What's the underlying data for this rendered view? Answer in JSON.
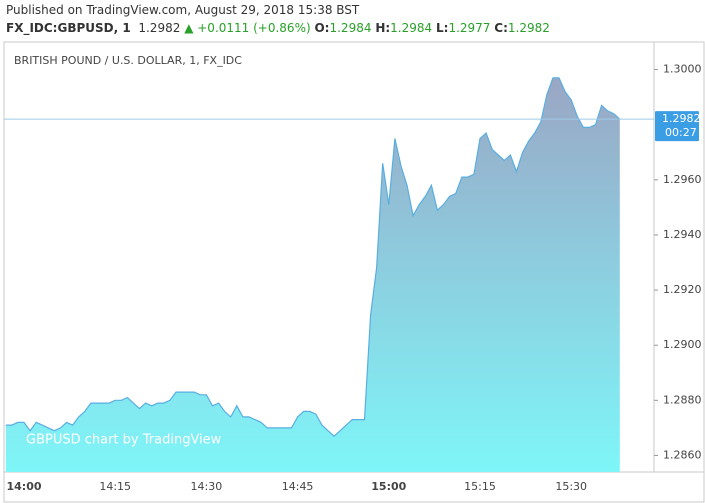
{
  "header": {
    "published": "Published on TradingView.com, August 29, 2018 15:38 BST",
    "symbol": "FX_IDC:GBPUSD, 1",
    "last": "1.2982",
    "change": "+0.0111 (+0.86%)",
    "ohlc": [
      {
        "label": "O:",
        "value": "1.2984"
      },
      {
        "label": "H:",
        "value": "1.2984"
      },
      {
        "label": "L:",
        "value": "1.2977"
      },
      {
        "label": "C:",
        "value": "1.2982"
      }
    ]
  },
  "chart_data": {
    "type": "area",
    "title": "BRITISH POUND / U.S. DOLLAR, 1, FX_IDC",
    "watermark": "GBPUSD chart by TradingView",
    "categories": [
      null,
      null,
      null,
      "14:00",
      null,
      null,
      null,
      null,
      null,
      null,
      null,
      null,
      null,
      null,
      null,
      null,
      null,
      null,
      "14:15",
      null,
      null,
      null,
      null,
      null,
      null,
      null,
      null,
      null,
      null,
      null,
      null,
      null,
      null,
      "14:30",
      null,
      null,
      null,
      null,
      null,
      null,
      null,
      null,
      null,
      null,
      null,
      null,
      null,
      null,
      "14:45",
      null,
      null,
      null,
      null,
      null,
      null,
      null,
      null,
      null,
      null,
      null,
      null,
      null,
      null,
      "15:00",
      null,
      null,
      null,
      null,
      null,
      null,
      null,
      null,
      null,
      null,
      null,
      null,
      null,
      null,
      "15:15",
      null,
      null,
      null,
      null,
      null,
      null,
      null,
      null,
      null,
      null,
      null,
      null,
      null,
      null,
      "15:30",
      null,
      null,
      null,
      null,
      null,
      null,
      null,
      null
    ],
    "values": [
      1.2871,
      1.2871,
      1.2872,
      1.2872,
      1.2869,
      1.2872,
      1.2871,
      1.287,
      1.2869,
      1.287,
      1.2872,
      1.2871,
      1.2874,
      1.2876,
      1.2879,
      1.2879,
      1.2879,
      1.2879,
      1.288,
      1.288,
      1.2881,
      1.2879,
      1.2877,
      1.2879,
      1.2878,
      1.2879,
      1.2879,
      1.288,
      1.2883,
      1.2883,
      1.2883,
      1.2883,
      1.2882,
      1.2882,
      1.2878,
      1.2879,
      1.2876,
      1.2874,
      1.2878,
      1.2874,
      1.2874,
      1.2873,
      1.2872,
      1.287,
      1.287,
      1.287,
      1.287,
      1.287,
      1.2874,
      1.2876,
      1.2876,
      1.2875,
      1.2871,
      1.2869,
      1.2867,
      1.2869,
      1.2871,
      1.2873,
      1.2873,
      1.2873,
      1.2911,
      1.2928,
      1.2966,
      1.2951,
      1.2975,
      1.2965,
      1.2958,
      1.2947,
      1.2951,
      1.2954,
      1.2958,
      1.2949,
      1.2951,
      1.2954,
      1.2955,
      1.2961,
      1.2961,
      1.2962,
      1.2975,
      1.2977,
      1.2971,
      1.2969,
      1.2967,
      1.2969,
      1.2963,
      1.297,
      1.2974,
      1.2977,
      1.2981,
      1.2991,
      1.2997,
      1.2997,
      1.2992,
      1.2989,
      1.2983,
      1.2979,
      1.2979,
      1.298,
      1.2987,
      1.2985,
      1.2984,
      1.2982
    ],
    "color": "#5aaee0",
    "ylim": [
      1.2854,
      1.301
    ],
    "yticks": [
      {
        "value": 1.286,
        "label": "1.2860"
      },
      {
        "value": 1.288,
        "label": "1.2880"
      },
      {
        "value": 1.29,
        "label": "1.2900"
      },
      {
        "value": 1.292,
        "label": "1.2920"
      },
      {
        "value": 1.294,
        "label": "1.2940"
      },
      {
        "value": 1.296,
        "label": "1.2960"
      },
      {
        "value": 1.3,
        "label": "1.3000"
      }
    ],
    "last_price": 1.2982,
    "countdown": "00:27"
  }
}
